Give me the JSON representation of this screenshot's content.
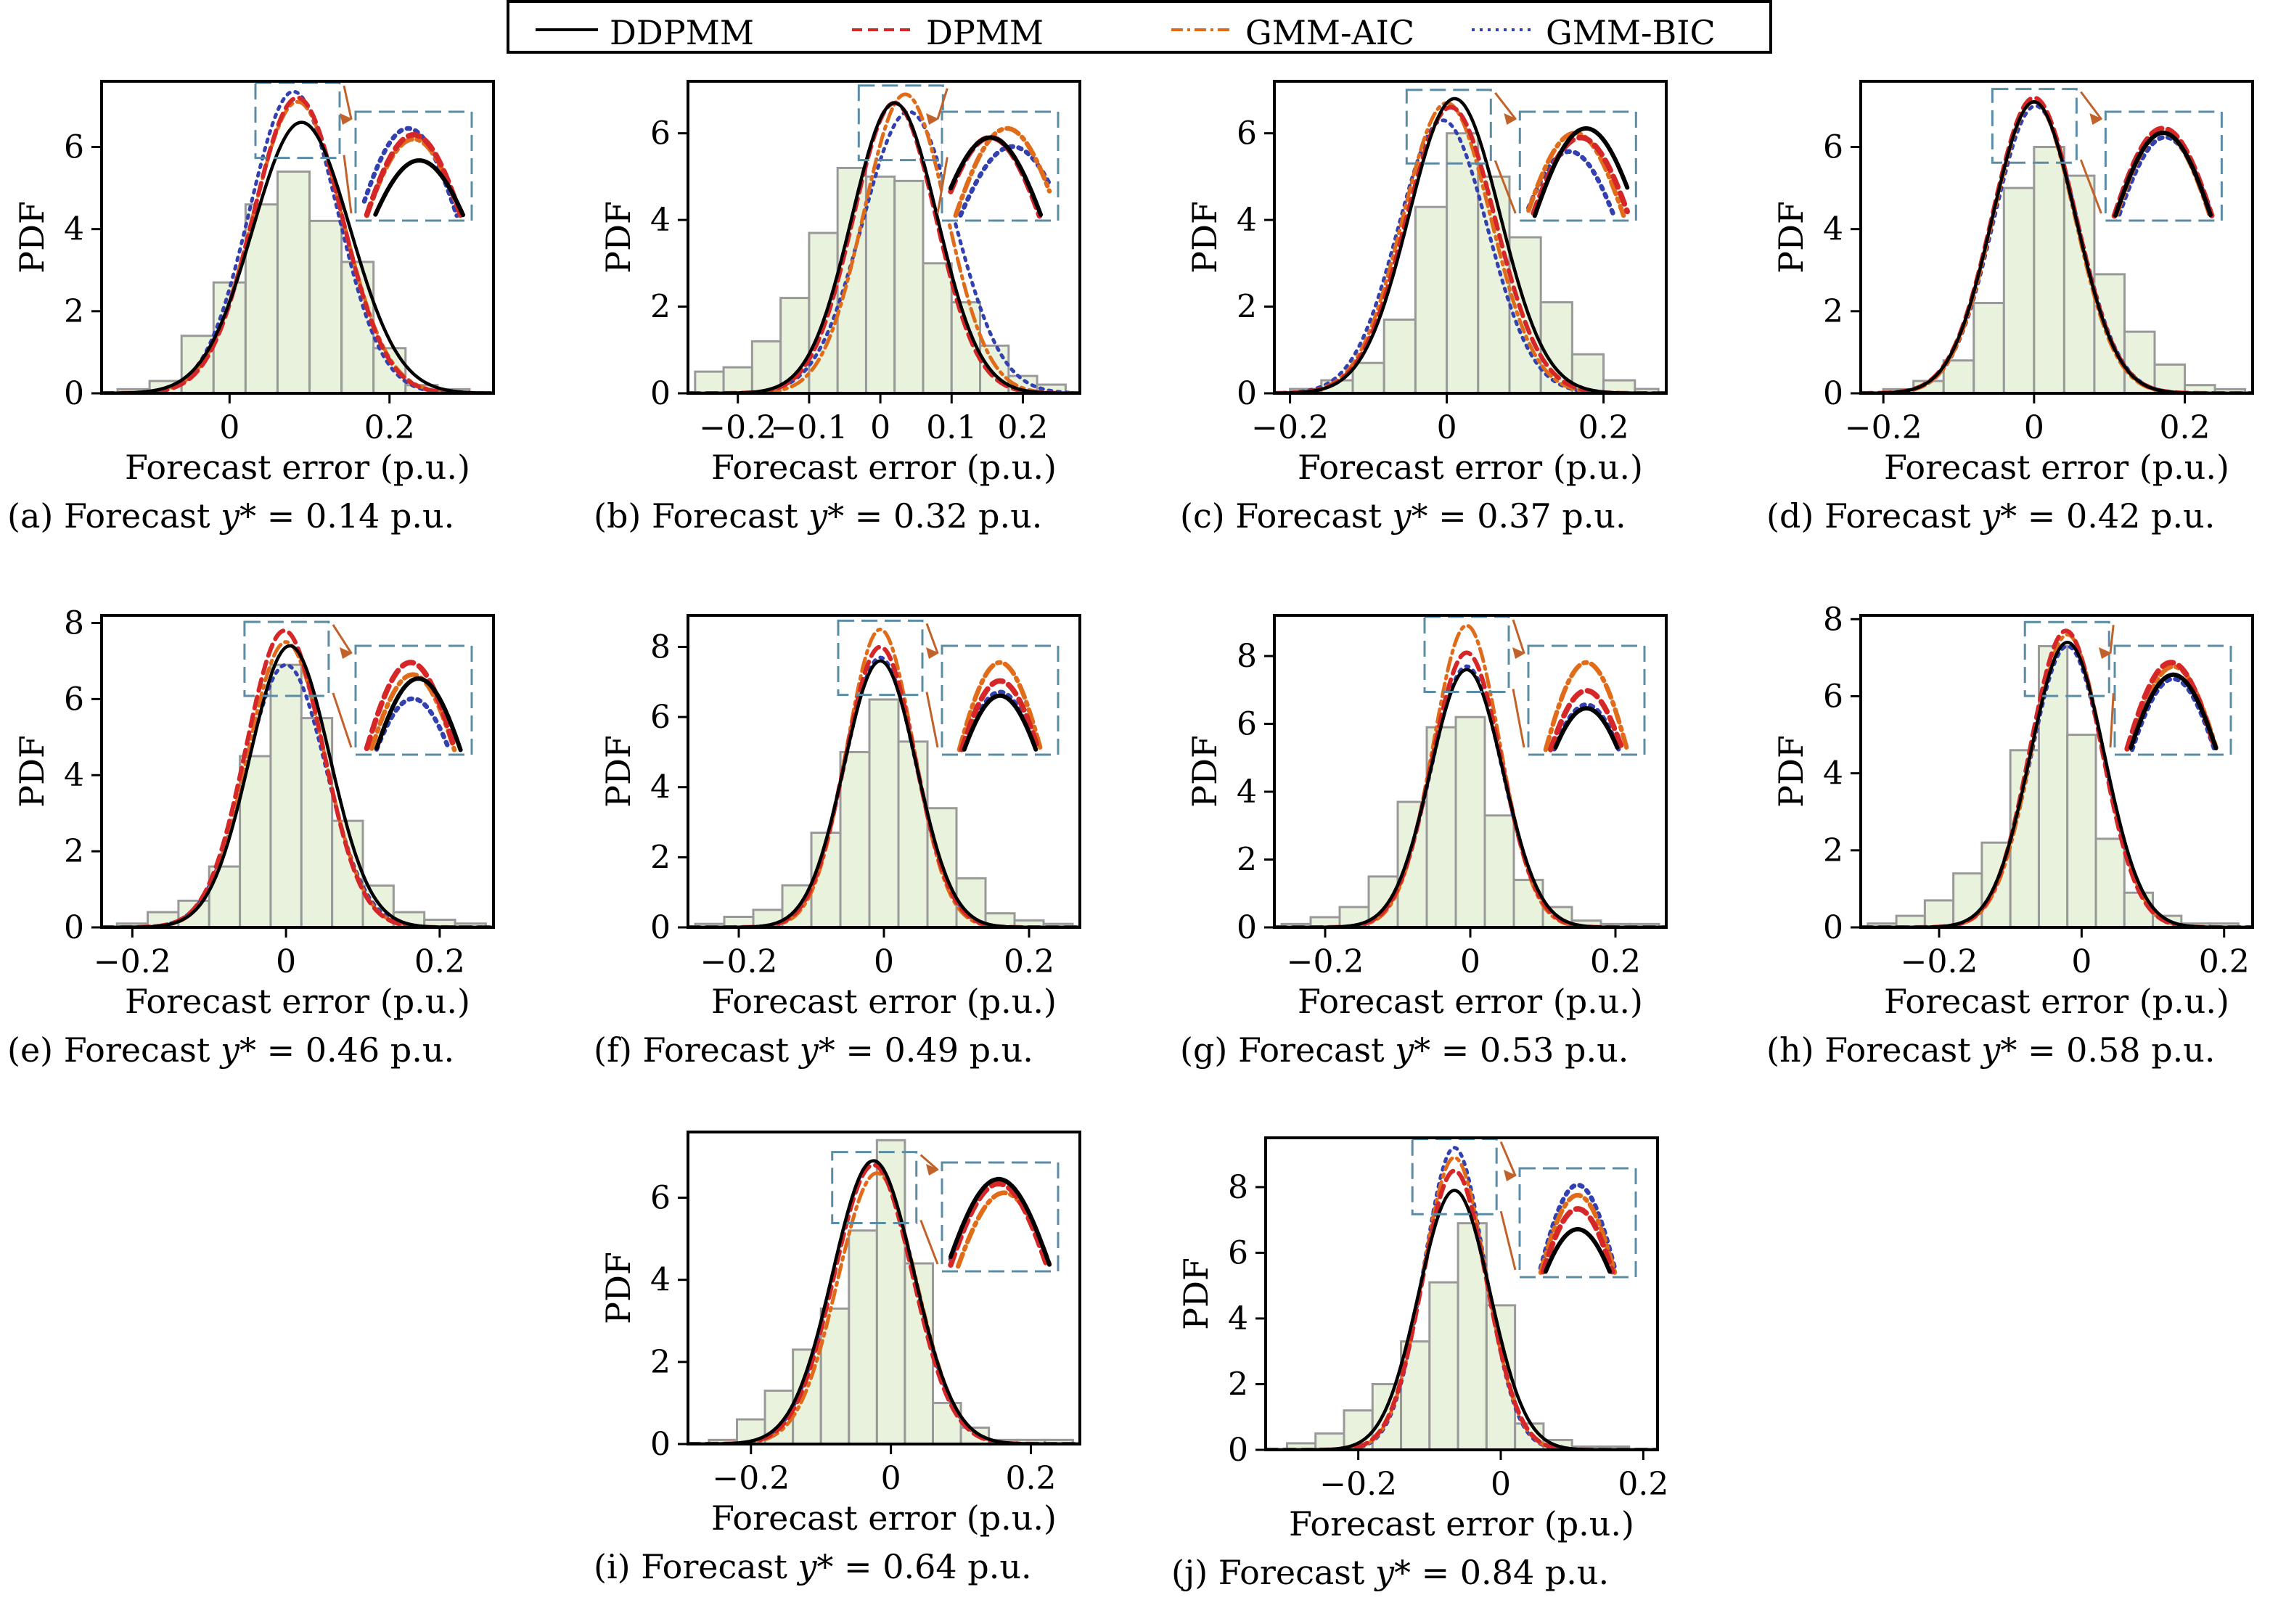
{
  "legend": {
    "items": [
      {
        "label": "DDPMM",
        "color": "#000000",
        "style": "solid"
      },
      {
        "label": "DPMM",
        "color": "#d62728",
        "style": "dashed"
      },
      {
        "label": "GMM-AIC",
        "color": "#e06c1a",
        "style": "dashdot"
      },
      {
        "label": "GMM-BIC",
        "color": "#3340b0",
        "style": "dotted"
      }
    ]
  },
  "colors": {
    "hist_fill": "#e8f2dc",
    "hist_edge": "#999999",
    "inset_box": "#5b8ca6",
    "arrow": "#c0622a"
  },
  "chart_data": [
    {
      "type": "line",
      "id": "a",
      "caption": {
        "prefix": "(a) Forecast ",
        "var": "y*",
        "suffix": " = 0.14 p.u."
      },
      "xlabel": "Forecast error (p.u.)",
      "ylabel": "PDF",
      "xlim": [
        -0.16,
        0.33
      ],
      "ylim": [
        0,
        7.6
      ],
      "xticks": [
        0,
        0.2
      ],
      "xtick_labels": [
        "0",
        "0.2"
      ],
      "yticks": [
        0,
        2,
        4,
        6
      ],
      "yticks_labels": [
        "0",
        "2",
        "4",
        "6"
      ],
      "histogram": {
        "edges": [
          -0.14,
          -0.1,
          -0.06,
          -0.02,
          0.02,
          0.06,
          0.1,
          0.14,
          0.18,
          0.22,
          0.26,
          0.3
        ],
        "densities": [
          0.1,
          0.3,
          1.4,
          2.7,
          4.6,
          5.4,
          4.2,
          3.2,
          1.1,
          0.2,
          0.1
        ]
      },
      "series": [
        {
          "name": "DDPMM",
          "mu": 0.09,
          "sigma": 0.061,
          "peak": 6.6
        },
        {
          "name": "DPMM",
          "mu": 0.085,
          "sigma": 0.055,
          "peak": 7.2
        },
        {
          "name": "GMM-AIC",
          "mu": 0.085,
          "sigma": 0.056,
          "peak": 7.1
        },
        {
          "name": "GMM-BIC",
          "mu": 0.08,
          "sigma": 0.055,
          "peak": 7.35
        }
      ]
    },
    {
      "type": "line",
      "id": "b",
      "caption": {
        "prefix": "(b) Forecast ",
        "var": "y*",
        "suffix": " = 0.32 p.u."
      },
      "xlabel": "Forecast error (p.u.)",
      "ylabel": "PDF",
      "xlim": [
        -0.27,
        0.28
      ],
      "ylim": [
        0,
        7.2
      ],
      "xticks": [
        -0.2,
        -0.1,
        0,
        0.1,
        0.2
      ],
      "xtick_labels": [
        "−0.2",
        "−0.1",
        "0",
        "0.1",
        "0.2"
      ],
      "yticks": [
        0,
        2,
        4,
        6
      ],
      "yticks_labels": [
        "0",
        "2",
        "4",
        "6"
      ],
      "histogram": {
        "edges": [
          -0.26,
          -0.22,
          -0.18,
          -0.14,
          -0.1,
          -0.06,
          -0.02,
          0.02,
          0.06,
          0.1,
          0.14,
          0.18,
          0.22,
          0.26
        ],
        "densities": [
          0.5,
          0.6,
          1.2,
          2.2,
          3.7,
          5.2,
          5.0,
          4.9,
          3.0,
          2.1,
          1.1,
          0.4,
          0.2
        ]
      },
      "series": [
        {
          "name": "DDPMM",
          "mu": 0.02,
          "sigma": 0.06,
          "peak": 6.7
        },
        {
          "name": "DPMM",
          "mu": 0.02,
          "sigma": 0.058,
          "peak": 6.7
        },
        {
          "name": "GMM-AIC",
          "mu": 0.035,
          "sigma": 0.058,
          "peak": 6.9
        },
        {
          "name": "GMM-BIC",
          "mu": 0.04,
          "sigma": 0.065,
          "peak": 6.5
        }
      ]
    },
    {
      "type": "line",
      "id": "c",
      "caption": {
        "prefix": "(c) Forecast ",
        "var": "y*",
        "suffix": " = 0.37 p.u."
      },
      "xlabel": "Forecast error (p.u.)",
      "ylabel": "PDF",
      "xlim": [
        -0.22,
        0.28
      ],
      "ylim": [
        0,
        7.2
      ],
      "xticks": [
        -0.2,
        0,
        0.2
      ],
      "xtick_labels": [
        "−0.2",
        "0",
        "0.2"
      ],
      "yticks": [
        0,
        2,
        4,
        6
      ],
      "yticks_labels": [
        "0",
        "2",
        "4",
        "6"
      ],
      "histogram": {
        "edges": [
          -0.2,
          -0.16,
          -0.12,
          -0.08,
          -0.04,
          0.0,
          0.04,
          0.08,
          0.12,
          0.16,
          0.2,
          0.24,
          0.27
        ],
        "densities": [
          0.1,
          0.3,
          0.7,
          1.7,
          4.3,
          6.0,
          5.0,
          3.6,
          2.1,
          0.9,
          0.3,
          0.1
        ]
      },
      "series": [
        {
          "name": "DDPMM",
          "mu": 0.01,
          "sigma": 0.058,
          "peak": 6.8
        },
        {
          "name": "DPMM",
          "mu": 0.005,
          "sigma": 0.057,
          "peak": 6.6
        },
        {
          "name": "GMM-AIC",
          "mu": 0.0,
          "sigma": 0.056,
          "peak": 6.7
        },
        {
          "name": "GMM-BIC",
          "mu": -0.005,
          "sigma": 0.057,
          "peak": 6.3
        }
      ]
    },
    {
      "type": "line",
      "id": "d",
      "caption": {
        "prefix": "(d) Forecast ",
        "var": "y*",
        "suffix": " = 0.42 p.u."
      },
      "xlabel": "Forecast error (p.u.)",
      "ylabel": "PDF",
      "xlim": [
        -0.23,
        0.29
      ],
      "ylim": [
        0,
        7.6
      ],
      "xticks": [
        -0.2,
        0,
        0.2
      ],
      "xtick_labels": [
        "−0.2",
        "0",
        "0.2"
      ],
      "yticks": [
        0,
        2,
        4,
        6
      ],
      "yticks_labels": [
        "0",
        "2",
        "4",
        "6"
      ],
      "histogram": {
        "edges": [
          -0.2,
          -0.16,
          -0.12,
          -0.08,
          -0.04,
          0.0,
          0.04,
          0.08,
          0.12,
          0.16,
          0.2,
          0.24,
          0.28
        ],
        "densities": [
          0.1,
          0.3,
          0.8,
          2.2,
          5.0,
          6.0,
          5.3,
          2.9,
          1.5,
          0.7,
          0.2,
          0.1
        ]
      },
      "series": [
        {
          "name": "DDPMM",
          "mu": 0.0,
          "sigma": 0.055,
          "peak": 7.1
        },
        {
          "name": "DPMM",
          "mu": 0.0,
          "sigma": 0.055,
          "peak": 7.2
        },
        {
          "name": "GMM-AIC",
          "mu": 0.0,
          "sigma": 0.054,
          "peak": 7.1
        },
        {
          "name": "GMM-BIC",
          "mu": 0.002,
          "sigma": 0.055,
          "peak": 7.0
        }
      ]
    },
    {
      "type": "line",
      "id": "e",
      "caption": {
        "prefix": "(e) Forecast ",
        "var": "y*",
        "suffix": " = 0.46 p.u."
      },
      "xlabel": "Forecast error (p.u.)",
      "ylabel": "PDF",
      "xlim": [
        -0.24,
        0.27
      ],
      "ylim": [
        0,
        8.2
      ],
      "xticks": [
        -0.2,
        0,
        0.2
      ],
      "xtick_labels": [
        "−0.2",
        "0",
        "0.2"
      ],
      "yticks": [
        0,
        2,
        4,
        6,
        8
      ],
      "yticks_labels": [
        "0",
        "2",
        "4",
        "6",
        "8"
      ],
      "histogram": {
        "edges": [
          -0.22,
          -0.18,
          -0.14,
          -0.1,
          -0.06,
          -0.02,
          0.02,
          0.06,
          0.1,
          0.14,
          0.18,
          0.22,
          0.26
        ],
        "densities": [
          0.1,
          0.4,
          0.7,
          1.6,
          4.5,
          6.9,
          5.5,
          2.8,
          1.1,
          0.4,
          0.2,
          0.1
        ]
      },
      "series": [
        {
          "name": "DDPMM",
          "mu": 0.005,
          "sigma": 0.052,
          "peak": 7.4
        },
        {
          "name": "DPMM",
          "mu": -0.002,
          "sigma": 0.05,
          "peak": 7.8
        },
        {
          "name": "GMM-AIC",
          "mu": 0.0,
          "sigma": 0.05,
          "peak": 7.5
        },
        {
          "name": "GMM-BIC",
          "mu": 0.0,
          "sigma": 0.052,
          "peak": 6.9
        }
      ]
    },
    {
      "type": "line",
      "id": "f",
      "caption": {
        "prefix": "(f) Forecast ",
        "var": "y*",
        "suffix": " = 0.49 p.u."
      },
      "xlabel": "Forecast error (p.u.)",
      "ylabel": "PDF",
      "xlim": [
        -0.27,
        0.27
      ],
      "ylim": [
        0,
        8.9
      ],
      "xticks": [
        -0.2,
        0,
        0.2
      ],
      "xtick_labels": [
        "−0.2",
        "0",
        "0.2"
      ],
      "yticks": [
        0,
        2,
        4,
        6,
        8
      ],
      "yticks_labels": [
        "0",
        "2",
        "4",
        "6",
        "8"
      ],
      "histogram": {
        "edges": [
          -0.26,
          -0.22,
          -0.18,
          -0.14,
          -0.1,
          -0.06,
          -0.02,
          0.02,
          0.06,
          0.1,
          0.14,
          0.18,
          0.22,
          0.26
        ],
        "densities": [
          0.1,
          0.3,
          0.5,
          1.2,
          2.7,
          5.0,
          6.5,
          5.3,
          3.4,
          1.4,
          0.4,
          0.2,
          0.1
        ]
      },
      "series": [
        {
          "name": "DDPMM",
          "mu": -0.005,
          "sigma": 0.05,
          "peak": 7.6
        },
        {
          "name": "DPMM",
          "mu": -0.005,
          "sigma": 0.048,
          "peak": 8.0
        },
        {
          "name": "GMM-AIC",
          "mu": -0.005,
          "sigma": 0.046,
          "peak": 8.5
        },
        {
          "name": "GMM-BIC",
          "mu": -0.005,
          "sigma": 0.049,
          "peak": 7.7
        }
      ]
    },
    {
      "type": "line",
      "id": "g",
      "caption": {
        "prefix": "(g) Forecast ",
        "var": "y*",
        "suffix": " = 0.53 p.u."
      },
      "xlabel": "Forecast error (p.u.)",
      "ylabel": "PDF",
      "xlim": [
        -0.27,
        0.27
      ],
      "ylim": [
        0,
        9.2
      ],
      "xticks": [
        -0.2,
        0,
        0.2
      ],
      "xtick_labels": [
        "−0.2",
        "0",
        "0.2"
      ],
      "yticks": [
        0,
        2,
        4,
        6,
        8
      ],
      "yticks_labels": [
        "0",
        "2",
        "4",
        "6",
        "8"
      ],
      "histogram": {
        "edges": [
          -0.26,
          -0.22,
          -0.18,
          -0.14,
          -0.1,
          -0.06,
          -0.02,
          0.02,
          0.06,
          0.1,
          0.14,
          0.18,
          0.22,
          0.26
        ],
        "densities": [
          0.1,
          0.3,
          0.6,
          1.5,
          3.7,
          5.9,
          6.2,
          3.3,
          1.4,
          0.6,
          0.2,
          0.1,
          0.1
        ]
      },
      "series": [
        {
          "name": "DDPMM",
          "mu": -0.005,
          "sigma": 0.05,
          "peak": 7.6
        },
        {
          "name": "DPMM",
          "mu": -0.005,
          "sigma": 0.048,
          "peak": 8.1
        },
        {
          "name": "GMM-AIC",
          "mu": -0.005,
          "sigma": 0.046,
          "peak": 8.9
        },
        {
          "name": "GMM-BIC",
          "mu": -0.005,
          "sigma": 0.049,
          "peak": 7.7
        }
      ]
    },
    {
      "type": "line",
      "id": "h",
      "caption": {
        "prefix": "(h) Forecast ",
        "var": "y*",
        "suffix": " = 0.58 p.u."
      },
      "xlabel": "Forecast error (p.u.)",
      "ylabel": "PDF",
      "xlim": [
        -0.31,
        0.24
      ],
      "ylim": [
        0,
        8.1
      ],
      "xticks": [
        -0.2,
        0,
        0.2
      ],
      "xtick_labels": [
        "−0.2",
        "0",
        "0.2"
      ],
      "yticks": [
        0,
        2,
        4,
        6,
        8
      ],
      "yticks_labels": [
        "0",
        "2",
        "4",
        "6",
        "8"
      ],
      "histogram": {
        "edges": [
          -0.3,
          -0.26,
          -0.22,
          -0.18,
          -0.14,
          -0.1,
          -0.06,
          -0.02,
          0.02,
          0.06,
          0.1,
          0.14,
          0.18,
          0.22
        ],
        "densities": [
          0.1,
          0.3,
          0.7,
          1.4,
          2.2,
          4.6,
          7.3,
          5.0,
          2.3,
          0.9,
          0.3,
          0.1,
          0.1
        ]
      },
      "series": [
        {
          "name": "DDPMM",
          "mu": -0.02,
          "sigma": 0.052,
          "peak": 7.4
        },
        {
          "name": "DPMM",
          "mu": -0.022,
          "sigma": 0.05,
          "peak": 7.7
        },
        {
          "name": "GMM-AIC",
          "mu": -0.02,
          "sigma": 0.05,
          "peak": 7.6
        },
        {
          "name": "GMM-BIC",
          "mu": -0.02,
          "sigma": 0.051,
          "peak": 7.3
        }
      ]
    },
    {
      "type": "line",
      "id": "i",
      "caption": {
        "prefix": "(i) Forecast ",
        "var": "y*",
        "suffix": " = 0.64 p.u."
      },
      "xlabel": "Forecast error (p.u.)",
      "ylabel": "PDF",
      "xlim": [
        -0.29,
        0.27
      ],
      "ylim": [
        0,
        7.6
      ],
      "xticks": [
        -0.2,
        0,
        0.2
      ],
      "xtick_labels": [
        "−0.2",
        "0",
        "0.2"
      ],
      "yticks": [
        0,
        2,
        4,
        6
      ],
      "yticks_labels": [
        "0",
        "2",
        "4",
        "6"
      ],
      "histogram": {
        "edges": [
          -0.26,
          -0.22,
          -0.18,
          -0.14,
          -0.1,
          -0.06,
          -0.02,
          0.02,
          0.06,
          0.1,
          0.14,
          0.18,
          0.22,
          0.26
        ],
        "densities": [
          0.1,
          0.6,
          1.3,
          2.3,
          3.3,
          5.2,
          7.4,
          4.4,
          1.0,
          0.4,
          0.1,
          0.1,
          0.1
        ]
      },
      "series": [
        {
          "name": "DDPMM",
          "mu": -0.025,
          "sigma": 0.058,
          "peak": 6.9
        },
        {
          "name": "DPMM",
          "mu": -0.025,
          "sigma": 0.056,
          "peak": 6.8
        },
        {
          "name": "GMM-AIC",
          "mu": -0.02,
          "sigma": 0.056,
          "peak": 6.6
        },
        {
          "name": "GMM-BIC",
          "mu": -0.025,
          "sigma": 0.057,
          "peak": 6.9
        }
      ]
    },
    {
      "type": "line",
      "id": "j",
      "caption": {
        "prefix": "(j) Forecast ",
        "var": "y*",
        "suffix": " = 0.84 p.u."
      },
      "xlabel": "Forecast error (p.u.)",
      "ylabel": "PDF",
      "xlim": [
        -0.33,
        0.22
      ],
      "ylim": [
        0,
        9.5
      ],
      "xticks": [
        -0.2,
        0,
        0.2
      ],
      "xtick_labels": [
        "−0.2",
        "0",
        "0.2"
      ],
      "yticks": [
        0,
        2,
        4,
        6,
        8
      ],
      "yticks_labels": [
        "0",
        "2",
        "4",
        "6",
        "8"
      ],
      "histogram": {
        "edges": [
          -0.3,
          -0.26,
          -0.22,
          -0.18,
          -0.14,
          -0.1,
          -0.06,
          -0.02,
          0.02,
          0.06,
          0.1,
          0.14,
          0.18
        ],
        "densities": [
          0.2,
          0.5,
          1.2,
          2.0,
          3.3,
          5.1,
          6.9,
          4.4,
          0.8,
          0.3,
          0.1,
          0.1
        ]
      },
      "series": [
        {
          "name": "DDPMM",
          "mu": -0.065,
          "sigma": 0.05,
          "peak": 7.9
        },
        {
          "name": "DPMM",
          "mu": -0.065,
          "sigma": 0.045,
          "peak": 8.5
        },
        {
          "name": "GMM-AIC",
          "mu": -0.065,
          "sigma": 0.044,
          "peak": 8.9
        },
        {
          "name": "GMM-BIC",
          "mu": -0.065,
          "sigma": 0.043,
          "peak": 9.2
        }
      ]
    }
  ]
}
